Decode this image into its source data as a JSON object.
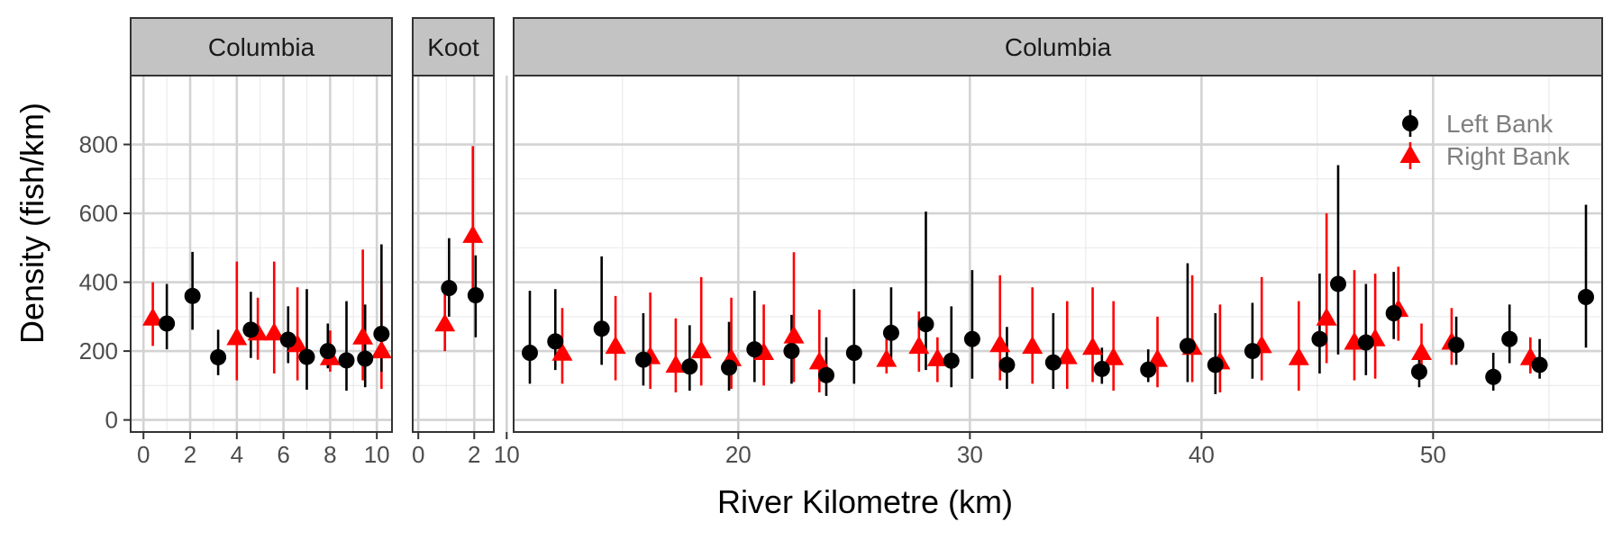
{
  "chart_data": {
    "type": "scatter",
    "xlabel": "River Kilometre (km)",
    "ylabel": "Density (fish/km)",
    "ylim": [
      -35,
      1000
    ],
    "yticks": [
      0,
      200,
      400,
      600,
      800
    ],
    "grid": true,
    "legend_position": "top-right",
    "series_styles": [
      {
        "name": "Left Bank",
        "color": "#000000",
        "marker": "circle"
      },
      {
        "name": "Right Bank",
        "color": "#ff0000",
        "marker": "triangle"
      }
    ],
    "panels": [
      {
        "strip": "Columbia",
        "xlim": [
          -0.55,
          10.65
        ],
        "xticks": [
          0,
          2,
          4,
          6,
          8,
          10
        ],
        "minor_x": [
          1,
          3,
          5,
          7,
          9
        ],
        "points": [
          {
            "bank": "Left Bank",
            "x": 1.0,
            "y": 280,
            "lo": 205,
            "hi": 395
          },
          {
            "bank": "Left Bank",
            "x": 2.1,
            "y": 360,
            "lo": 262,
            "hi": 488
          },
          {
            "bank": "Left Bank",
            "x": 3.2,
            "y": 182,
            "lo": 130,
            "hi": 262
          },
          {
            "bank": "Left Bank",
            "x": 4.6,
            "y": 262,
            "lo": 180,
            "hi": 372
          },
          {
            "bank": "Left Bank",
            "x": 6.2,
            "y": 233,
            "lo": 165,
            "hi": 330
          },
          {
            "bank": "Left Bank",
            "x": 7.0,
            "y": 183,
            "lo": 88,
            "hi": 380
          },
          {
            "bank": "Left Bank",
            "x": 7.9,
            "y": 200,
            "lo": 150,
            "hi": 280
          },
          {
            "bank": "Left Bank",
            "x": 8.7,
            "y": 173,
            "lo": 85,
            "hi": 345
          },
          {
            "bank": "Left Bank",
            "x": 9.5,
            "y": 178,
            "lo": 95,
            "hi": 335
          },
          {
            "bank": "Left Bank",
            "x": 10.2,
            "y": 250,
            "lo": 140,
            "hi": 510
          },
          {
            "bank": "Right Bank",
            "x": 0.4,
            "y": 295,
            "lo": 215,
            "hi": 400
          },
          {
            "bank": "Right Bank",
            "x": 4.0,
            "y": 238,
            "lo": 115,
            "hi": 460
          },
          {
            "bank": "Right Bank",
            "x": 4.9,
            "y": 252,
            "lo": 175,
            "hi": 355
          },
          {
            "bank": "Right Bank",
            "x": 5.6,
            "y": 252,
            "lo": 135,
            "hi": 460
          },
          {
            "bank": "Right Bank",
            "x": 6.6,
            "y": 218,
            "lo": 115,
            "hi": 385
          },
          {
            "bank": "Right Bank",
            "x": 8.0,
            "y": 180,
            "lo": 140,
            "hi": 260
          },
          {
            "bank": "Right Bank",
            "x": 9.4,
            "y": 240,
            "lo": 115,
            "hi": 495
          },
          {
            "bank": "Right Bank",
            "x": 10.2,
            "y": 200,
            "lo": 90,
            "hi": 395
          }
        ]
      },
      {
        "strip": "Koot",
        "xlim": [
          -0.2,
          2.7
        ],
        "xticks": [
          0,
          2
        ],
        "minor_x": [
          1
        ],
        "points": [
          {
            "bank": "Left Bank",
            "x": 1.1,
            "y": 383,
            "lo": 300,
            "hi": 528
          },
          {
            "bank": "Left Bank",
            "x": 2.05,
            "y": 362,
            "lo": 240,
            "hi": 478
          },
          {
            "bank": "Right Bank",
            "x": 0.95,
            "y": 278,
            "lo": 200,
            "hi": 378
          },
          {
            "bank": "Right Bank",
            "x": 1.95,
            "y": 535,
            "lo": 345,
            "hi": 795
          }
        ]
      },
      {
        "strip": "Columbia",
        "xlim": [
          10.3,
          57.3
        ],
        "xticks": [
          10,
          20,
          30,
          40,
          50
        ],
        "minor_x": [
          15,
          25,
          35,
          45,
          55
        ],
        "points": [
          {
            "bank": "Left Bank",
            "x": 11.0,
            "y": 195,
            "lo": 105,
            "hi": 375
          },
          {
            "bank": "Left Bank",
            "x": 12.1,
            "y": 228,
            "lo": 145,
            "hi": 380
          },
          {
            "bank": "Left Bank",
            "x": 14.1,
            "y": 265,
            "lo": 160,
            "hi": 475
          },
          {
            "bank": "Left Bank",
            "x": 15.9,
            "y": 175,
            "lo": 100,
            "hi": 310
          },
          {
            "bank": "Left Bank",
            "x": 17.9,
            "y": 155,
            "lo": 85,
            "hi": 275
          },
          {
            "bank": "Left Bank",
            "x": 19.6,
            "y": 152,
            "lo": 85,
            "hi": 285
          },
          {
            "bank": "Left Bank",
            "x": 20.7,
            "y": 205,
            "lo": 110,
            "hi": 375
          },
          {
            "bank": "Left Bank",
            "x": 22.3,
            "y": 200,
            "lo": 105,
            "hi": 305
          },
          {
            "bank": "Left Bank",
            "x": 23.8,
            "y": 130,
            "lo": 70,
            "hi": 240
          },
          {
            "bank": "Left Bank",
            "x": 25.0,
            "y": 195,
            "lo": 105,
            "hi": 380
          },
          {
            "bank": "Left Bank",
            "x": 26.6,
            "y": 253,
            "lo": 170,
            "hi": 385
          },
          {
            "bank": "Left Bank",
            "x": 28.1,
            "y": 278,
            "lo": 145,
            "hi": 605
          },
          {
            "bank": "Left Bank",
            "x": 29.2,
            "y": 172,
            "lo": 95,
            "hi": 330
          },
          {
            "bank": "Left Bank",
            "x": 30.1,
            "y": 235,
            "lo": 120,
            "hi": 435
          },
          {
            "bank": "Left Bank",
            "x": 31.6,
            "y": 160,
            "lo": 90,
            "hi": 270
          },
          {
            "bank": "Left Bank",
            "x": 33.6,
            "y": 167,
            "lo": 90,
            "hi": 310
          },
          {
            "bank": "Left Bank",
            "x": 35.7,
            "y": 148,
            "lo": 105,
            "hi": 210
          },
          {
            "bank": "Left Bank",
            "x": 37.7,
            "y": 146,
            "lo": 110,
            "hi": 205
          },
          {
            "bank": "Left Bank",
            "x": 39.4,
            "y": 215,
            "lo": 110,
            "hi": 455
          },
          {
            "bank": "Left Bank",
            "x": 40.6,
            "y": 160,
            "lo": 75,
            "hi": 310
          },
          {
            "bank": "Left Bank",
            "x": 42.2,
            "y": 200,
            "lo": 120,
            "hi": 340
          },
          {
            "bank": "Left Bank",
            "x": 45.1,
            "y": 235,
            "lo": 135,
            "hi": 425
          },
          {
            "bank": "Left Bank",
            "x": 45.9,
            "y": 395,
            "lo": 190,
            "hi": 740
          },
          {
            "bank": "Left Bank",
            "x": 47.1,
            "y": 225,
            "lo": 130,
            "hi": 395
          },
          {
            "bank": "Left Bank",
            "x": 48.3,
            "y": 310,
            "lo": 235,
            "hi": 430
          },
          {
            "bank": "Left Bank",
            "x": 49.4,
            "y": 140,
            "lo": 95,
            "hi": 200
          },
          {
            "bank": "Left Bank",
            "x": 51.0,
            "y": 218,
            "lo": 160,
            "hi": 300
          },
          {
            "bank": "Left Bank",
            "x": 52.6,
            "y": 125,
            "lo": 85,
            "hi": 195
          },
          {
            "bank": "Left Bank",
            "x": 53.3,
            "y": 235,
            "lo": 165,
            "hi": 335
          },
          {
            "bank": "Left Bank",
            "x": 54.6,
            "y": 160,
            "lo": 120,
            "hi": 235
          },
          {
            "bank": "Left Bank",
            "x": 56.6,
            "y": 357,
            "lo": 210,
            "hi": 625
          },
          {
            "bank": "Right Bank",
            "x": 12.4,
            "y": 193,
            "lo": 105,
            "hi": 325
          },
          {
            "bank": "Right Bank",
            "x": 14.7,
            "y": 213,
            "lo": 115,
            "hi": 360
          },
          {
            "bank": "Right Bank",
            "x": 16.2,
            "y": 183,
            "lo": 90,
            "hi": 370
          },
          {
            "bank": "Right Bank",
            "x": 17.3,
            "y": 158,
            "lo": 80,
            "hi": 295
          },
          {
            "bank": "Right Bank",
            "x": 18.4,
            "y": 200,
            "lo": 100,
            "hi": 415
          },
          {
            "bank": "Right Bank",
            "x": 19.7,
            "y": 177,
            "lo": 90,
            "hi": 355
          },
          {
            "bank": "Right Bank",
            "x": 21.1,
            "y": 195,
            "lo": 100,
            "hi": 335
          },
          {
            "bank": "Right Bank",
            "x": 22.4,
            "y": 243,
            "lo": 110,
            "hi": 487
          },
          {
            "bank": "Right Bank",
            "x": 23.5,
            "y": 168,
            "lo": 80,
            "hi": 320
          },
          {
            "bank": "Right Bank",
            "x": 26.4,
            "y": 175,
            "lo": 135,
            "hi": 235
          },
          {
            "bank": "Right Bank",
            "x": 27.8,
            "y": 213,
            "lo": 140,
            "hi": 315
          },
          {
            "bank": "Right Bank",
            "x": 28.6,
            "y": 177,
            "lo": 110,
            "hi": 240
          },
          {
            "bank": "Right Bank",
            "x": 31.3,
            "y": 218,
            "lo": 115,
            "hi": 420
          },
          {
            "bank": "Right Bank",
            "x": 32.7,
            "y": 213,
            "lo": 105,
            "hi": 385
          },
          {
            "bank": "Right Bank",
            "x": 34.2,
            "y": 183,
            "lo": 90,
            "hi": 345
          },
          {
            "bank": "Right Bank",
            "x": 35.3,
            "y": 210,
            "lo": 110,
            "hi": 385
          },
          {
            "bank": "Right Bank",
            "x": 36.2,
            "y": 180,
            "lo": 85,
            "hi": 345
          },
          {
            "bank": "Right Bank",
            "x": 38.1,
            "y": 175,
            "lo": 95,
            "hi": 300
          },
          {
            "bank": "Right Bank",
            "x": 39.6,
            "y": 210,
            "lo": 110,
            "hi": 420
          },
          {
            "bank": "Right Bank",
            "x": 40.8,
            "y": 168,
            "lo": 80,
            "hi": 335
          },
          {
            "bank": "Right Bank",
            "x": 42.6,
            "y": 215,
            "lo": 115,
            "hi": 415
          },
          {
            "bank": "Right Bank",
            "x": 44.2,
            "y": 180,
            "lo": 85,
            "hi": 345
          },
          {
            "bank": "Right Bank",
            "x": 45.4,
            "y": 295,
            "lo": 165,
            "hi": 600
          },
          {
            "bank": "Right Bank",
            "x": 46.6,
            "y": 225,
            "lo": 115,
            "hi": 435
          },
          {
            "bank": "Right Bank",
            "x": 47.5,
            "y": 235,
            "lo": 120,
            "hi": 425
          },
          {
            "bank": "Right Bank",
            "x": 48.5,
            "y": 320,
            "lo": 230,
            "hi": 445
          },
          {
            "bank": "Right Bank",
            "x": 49.5,
            "y": 195,
            "lo": 125,
            "hi": 280
          },
          {
            "bank": "Right Bank",
            "x": 50.8,
            "y": 225,
            "lo": 160,
            "hi": 325
          },
          {
            "bank": "Right Bank",
            "x": 54.2,
            "y": 180,
            "lo": 135,
            "hi": 240
          }
        ]
      }
    ]
  }
}
